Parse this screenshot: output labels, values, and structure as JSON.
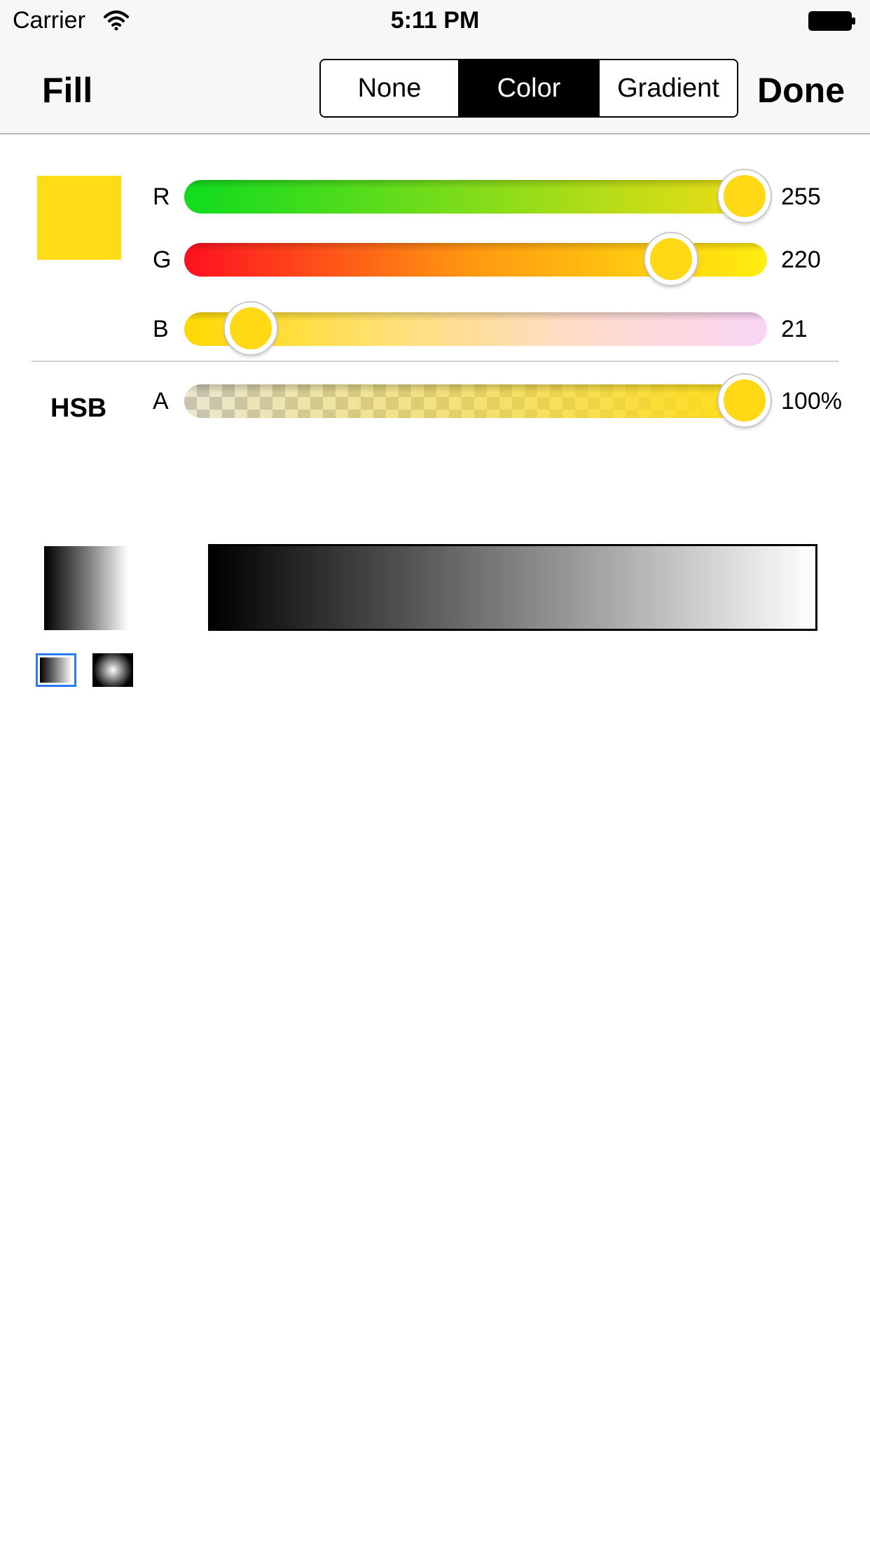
{
  "status_bar": {
    "carrier": "Carrier",
    "time": "5:11 PM",
    "icons": [
      "wifi-icon",
      "battery-icon"
    ]
  },
  "nav": {
    "title": "Fill",
    "segments": [
      {
        "label": "None",
        "selected": false
      },
      {
        "label": "Color",
        "selected": true
      },
      {
        "label": "Gradient",
        "selected": false
      }
    ],
    "done_label": "Done"
  },
  "color": {
    "swatch_hex": "#FFDC15",
    "mode_label": "HSB",
    "channels": [
      {
        "label": "R",
        "value": "255",
        "fraction": 1.0
      },
      {
        "label": "G",
        "value": "220",
        "fraction": 0.8627
      },
      {
        "label": "B",
        "value": "21",
        "fraction": 0.0824
      },
      {
        "label": "A",
        "value": "100%",
        "fraction": 1.0
      }
    ]
  },
  "gradient": {
    "types": [
      "linear",
      "radial"
    ],
    "selected_type": "linear",
    "selection_color": "#2B7BF5"
  }
}
